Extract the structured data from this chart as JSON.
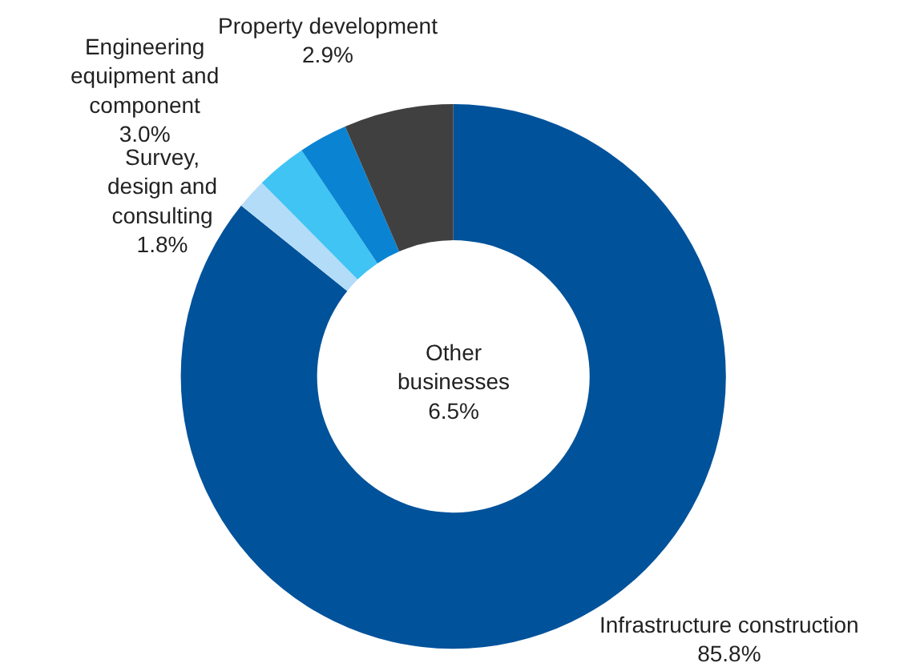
{
  "chart_data": {
    "type": "donut",
    "categories": [
      "Infrastructure construction",
      "Survey, design and consulting",
      "Engineering equipment and component",
      "Property development",
      "Other businesses"
    ],
    "values": [
      85.8,
      1.8,
      3.0,
      2.9,
      6.5
    ],
    "colors": [
      "#00529b",
      "#b3dcf8",
      "#40c4f4",
      "#0a84d2",
      "#404040"
    ],
    "value_labels": [
      "85.8%",
      "1.8%",
      "3.0%",
      "2.9%",
      "6.5%"
    ],
    "legend": false
  }
}
